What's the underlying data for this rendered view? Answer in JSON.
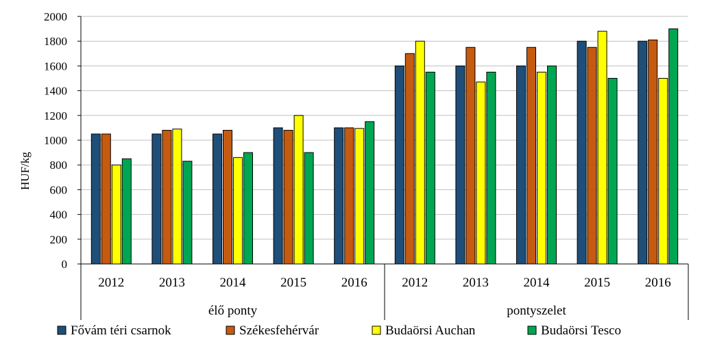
{
  "chart_data": {
    "type": "bar",
    "ylabel": "HUF/kg",
    "ylim": [
      0,
      2000
    ],
    "yticks": [
      0,
      200,
      400,
      600,
      800,
      1000,
      1200,
      1400,
      1600,
      1800,
      2000
    ],
    "grid": true,
    "legend_position": "bottom",
    "groups": [
      {
        "label": "élő ponty",
        "categories": [
          "2012",
          "2013",
          "2014",
          "2015",
          "2016"
        ]
      },
      {
        "label": "pontyszelet",
        "categories": [
          "2012",
          "2013",
          "2014",
          "2015",
          "2016"
        ]
      }
    ],
    "series": [
      {
        "name": "Fővám téri csarnok",
        "color": "#1f4e79",
        "values": [
          1050,
          1050,
          1050,
          1100,
          1100,
          1600,
          1600,
          1600,
          1800,
          1800
        ]
      },
      {
        "name": "Székesfehérvár",
        "color": "#c55a11",
        "values": [
          1050,
          1080,
          1080,
          1080,
          1100,
          1700,
          1750,
          1750,
          1750,
          1810
        ]
      },
      {
        "name": "Budaörsi Auchan",
        "color": "#ffff00",
        "values": [
          800,
          1090,
          860,
          1200,
          1095,
          1800,
          1470,
          1550,
          1880,
          1500
        ]
      },
      {
        "name": "Budaörsi Tesco",
        "color": "#00a651",
        "values": [
          850,
          830,
          900,
          900,
          1150,
          1550,
          1550,
          1600,
          1500,
          1900
        ]
      }
    ]
  }
}
